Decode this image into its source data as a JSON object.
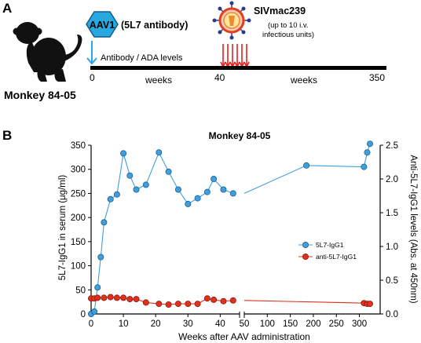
{
  "panel_a": {
    "label": "A",
    "subject": "Monkey 84-05",
    "aav_badge": "AAV1",
    "antibody": "(5L7 antibody)",
    "virus_name": "SIVmac239",
    "virus_note_line1": "(up to 10 i.v.",
    "virus_note_line2": "infectious units)",
    "measure_label": "Antibody / ADA levels",
    "tick_0": "0",
    "tick_40": "40",
    "tick_350": "350",
    "weeks_label_left": "weeks",
    "weeks_label_right": "weeks",
    "colors": {
      "aav_badge": "#29a8e0",
      "challenge_arrows": "#e8201c",
      "timeline": "#000000"
    }
  },
  "panel_b": {
    "label": "B"
  },
  "chart_data": {
    "type": "line",
    "title": "Monkey 84-05",
    "xlabel": "Weeks after AAV administration",
    "ylabel": "5L7-IgG1 in serum (μg/ml)",
    "y2label": "Anti-5L7-IgG1 levels (Abs. at 450nm)",
    "x_axis": "broken",
    "x_segments": [
      {
        "range": [
          0,
          46
        ],
        "ticks": [
          0,
          10,
          20,
          30,
          40
        ]
      },
      {
        "range": [
          50,
          340
        ],
        "ticks": [
          50,
          100,
          150,
          200,
          250,
          300
        ]
      }
    ],
    "ylim": [
      0,
      350
    ],
    "yticks": [
      0,
      50,
      100,
      150,
      200,
      250,
      300,
      350
    ],
    "y2lim": [
      0,
      2.5
    ],
    "y2ticks": [
      "0.0",
      "0.5",
      "1.0",
      "1.5",
      "2.0",
      "2.5"
    ],
    "legend_position": "right",
    "grid": false,
    "series": [
      {
        "name": "5L7-IgG1",
        "axis": "left",
        "color": "#3e9fdc",
        "points": [
          [
            0,
            0
          ],
          [
            1,
            5
          ],
          [
            2,
            55
          ],
          [
            3,
            118
          ],
          [
            4,
            190
          ],
          [
            6,
            238
          ],
          [
            8,
            248
          ],
          [
            10,
            333
          ],
          [
            12,
            287
          ],
          [
            14,
            258
          ],
          [
            17,
            268
          ],
          [
            21,
            335
          ],
          [
            24,
            295
          ],
          [
            27,
            258
          ],
          [
            30,
            228
          ],
          [
            33,
            240
          ],
          [
            36,
            253
          ],
          [
            38,
            280
          ],
          [
            41,
            258
          ],
          [
            44,
            250
          ],
          [
            185,
            308
          ],
          [
            310,
            305
          ],
          [
            317,
            335
          ],
          [
            323,
            353
          ]
        ]
      },
      {
        "name": "anti-5L7-IgG1",
        "axis": "right",
        "color": "#e0301e",
        "points": [
          [
            0,
            0.23
          ],
          [
            1,
            0.23
          ],
          [
            2,
            0.24
          ],
          [
            4,
            0.24
          ],
          [
            6,
            0.25
          ],
          [
            8,
            0.24
          ],
          [
            10,
            0.24
          ],
          [
            12,
            0.22
          ],
          [
            14,
            0.22
          ],
          [
            17,
            0.17
          ],
          [
            21,
            0.15
          ],
          [
            24,
            0.14
          ],
          [
            27,
            0.15
          ],
          [
            30,
            0.15
          ],
          [
            33,
            0.15
          ],
          [
            36,
            0.23
          ],
          [
            38,
            0.21
          ],
          [
            41,
            0.19
          ],
          [
            44,
            0.2
          ],
          [
            310,
            0.16
          ],
          [
            317,
            0.15
          ],
          [
            323,
            0.15
          ]
        ]
      }
    ]
  }
}
